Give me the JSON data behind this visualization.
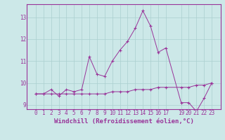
{
  "xlabel": "Windchill (Refroidissement éolien,°C)",
  "line1_x": [
    0,
    1,
    2,
    3,
    4,
    5,
    6,
    7,
    8,
    9,
    10,
    11,
    12,
    13,
    14,
    15,
    16,
    17,
    19,
    20,
    21,
    22,
    23
  ],
  "line1_y": [
    9.5,
    9.5,
    9.7,
    9.4,
    9.7,
    9.6,
    9.7,
    11.2,
    10.4,
    10.3,
    11.0,
    11.5,
    11.9,
    12.5,
    13.3,
    12.6,
    11.4,
    11.6,
    9.1,
    9.1,
    8.7,
    9.3,
    10.0
  ],
  "line2_x": [
    0,
    1,
    2,
    3,
    4,
    5,
    6,
    7,
    8,
    9,
    10,
    11,
    12,
    13,
    14,
    15,
    16,
    17,
    19,
    20,
    21,
    22,
    23
  ],
  "line2_y": [
    9.5,
    9.5,
    9.5,
    9.5,
    9.5,
    9.5,
    9.5,
    9.5,
    9.5,
    9.5,
    9.6,
    9.6,
    9.6,
    9.7,
    9.7,
    9.7,
    9.8,
    9.8,
    9.8,
    9.8,
    9.9,
    9.9,
    10.0
  ],
  "line_color": "#993399",
  "bg_color": "#cce8e8",
  "grid_color": "#aacfcf",
  "ylim": [
    8.8,
    13.6
  ],
  "yticks": [
    9,
    10,
    11,
    12,
    13
  ],
  "xticks": [
    0,
    1,
    2,
    3,
    4,
    5,
    6,
    7,
    8,
    9,
    10,
    11,
    12,
    13,
    14,
    15,
    16,
    17,
    19,
    20,
    21,
    22,
    23
  ],
  "tick_fontsize": 5.5,
  "xlabel_fontsize": 6.5
}
